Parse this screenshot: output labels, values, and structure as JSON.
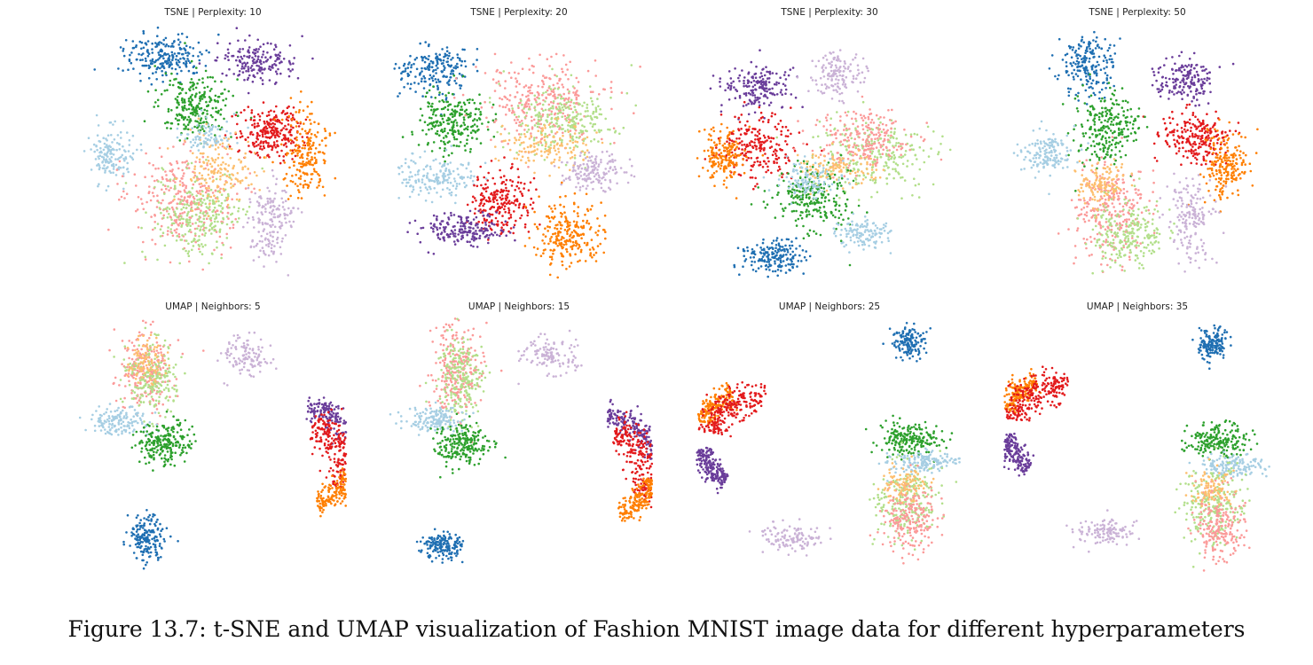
{
  "caption": "Figure 13.7: t-SNE and UMAP visualization of Fashion MNIST image data for different hyperparameters",
  "palette": {
    "dark_blue": "#1f6fb2",
    "light_blue": "#a6cee3",
    "green": "#2ca02c",
    "light_green": "#b2df8a",
    "purple": "#6a3d9a",
    "lavender": "#cab2d6",
    "red": "#e31a1c",
    "orange": "#ff7f00",
    "pink": "#fb9a99",
    "tan": "#fdbf6f"
  },
  "chart_data": [
    {
      "type": "scatter",
      "title": "TSNE | Perplexity: 10",
      "method": "TSNE",
      "hyperparameter": "Perplexity",
      "value": 10,
      "grid": false,
      "axes_visible": false
    },
    {
      "type": "scatter",
      "title": "TSNE | Perplexity: 20",
      "method": "TSNE",
      "hyperparameter": "Perplexity",
      "value": 20,
      "grid": false,
      "axes_visible": false
    },
    {
      "type": "scatter",
      "title": "TSNE | Perplexity: 30",
      "method": "TSNE",
      "hyperparameter": "Perplexity",
      "value": 30,
      "grid": false,
      "axes_visible": false
    },
    {
      "type": "scatter",
      "title": "TSNE | Perplexity: 50",
      "method": "TSNE",
      "hyperparameter": "Perplexity",
      "value": 50,
      "grid": false,
      "axes_visible": false
    },
    {
      "type": "scatter",
      "title": "UMAP | Neighbors: 5",
      "method": "UMAP",
      "hyperparameter": "Neighbors",
      "value": 5,
      "grid": false,
      "axes_visible": false
    },
    {
      "type": "scatter",
      "title": "UMAP | Neighbors: 15",
      "method": "UMAP",
      "hyperparameter": "Neighbors",
      "value": 15,
      "grid": false,
      "axes_visible": false
    },
    {
      "type": "scatter",
      "title": "UMAP | Neighbors: 25",
      "method": "UMAP",
      "hyperparameter": "Neighbors",
      "value": 25,
      "grid": false,
      "axes_visible": false
    },
    {
      "type": "scatter",
      "title": "UMAP | Neighbors: 35",
      "method": "UMAP",
      "hyperparameter": "Neighbors",
      "value": 35,
      "grid": false,
      "axes_visible": false
    }
  ]
}
